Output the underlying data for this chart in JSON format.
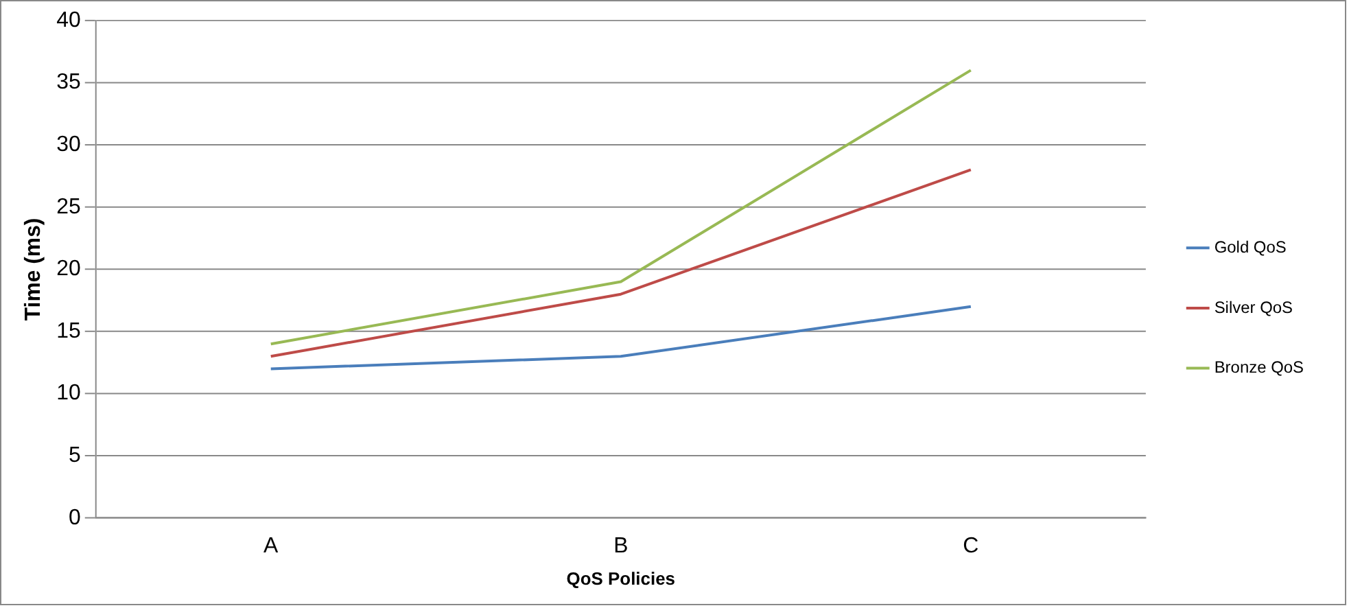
{
  "chart_data": {
    "type": "line",
    "xlabel": "QoS Policies",
    "ylabel": "Time (ms)",
    "categories": [
      "A",
      "B",
      "C"
    ],
    "series": [
      {
        "name": "Gold QoS",
        "color": "#4a7ebb",
        "values": [
          12,
          13,
          17
        ]
      },
      {
        "name": "Silver QoS",
        "color": "#be4b48",
        "values": [
          13,
          18,
          28
        ]
      },
      {
        "name": "Bronze QoS",
        "color": "#98b954",
        "values": [
          14,
          19,
          36
        ]
      }
    ],
    "ylim": [
      0,
      40
    ],
    "yticks": [
      0,
      5,
      10,
      15,
      20,
      25,
      30,
      35,
      40
    ],
    "grid": "y",
    "legend": "right",
    "marker": "none",
    "line_style": "solid"
  }
}
